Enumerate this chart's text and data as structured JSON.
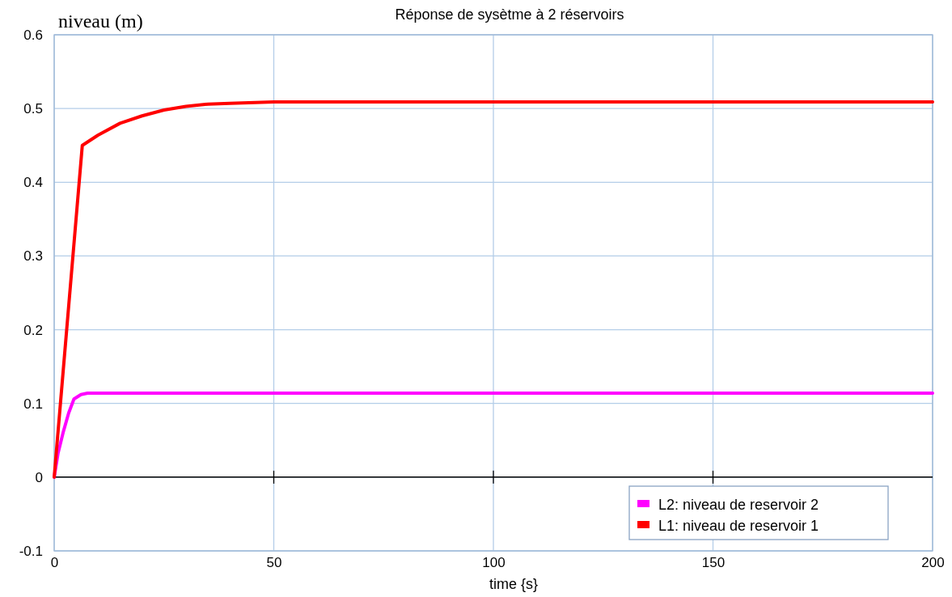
{
  "chart_data": {
    "type": "line",
    "title": "Réponse de sysètme à 2 réservoirs",
    "xlabel": "time {s}",
    "ylabel": "niveau (m)",
    "xlim": [
      0,
      200
    ],
    "ylim": [
      -0.1,
      0.6
    ],
    "xticks": [
      0,
      50,
      100,
      150,
      200
    ],
    "yticks": [
      -0.1,
      0,
      0.1,
      0.2,
      0.3,
      0.4,
      0.5,
      0.6
    ],
    "grid": true,
    "legend": "bottom right",
    "line_style": "solid",
    "ref_lines": [
      {
        "axis": "y",
        "value": 0,
        "color": "#000000"
      }
    ],
    "series": [
      {
        "name": "L2: niveau de reservoir 2",
        "color": "#ff00ff",
        "x": [
          0,
          0.9,
          2.1,
          3.3,
          4.5,
          6.1,
          7.6,
          10,
          20,
          50,
          100,
          150,
          200
        ],
        "values": [
          0,
          0.033,
          0.062,
          0.087,
          0.106,
          0.112,
          0.114,
          0.114,
          0.114,
          0.114,
          0.114,
          0.114,
          0.114
        ]
      },
      {
        "name": "L1: niveau de reservoir 1",
        "color": "#ff0000",
        "x": [
          0,
          6.4,
          10,
          15,
          20,
          25,
          30,
          35,
          40,
          50,
          70,
          100,
          150,
          200
        ],
        "values": [
          0,
          0.45,
          0.464,
          0.48,
          0.49,
          0.498,
          0.503,
          0.506,
          0.507,
          0.509,
          0.509,
          0.509,
          0.509,
          0.509
        ]
      }
    ]
  }
}
